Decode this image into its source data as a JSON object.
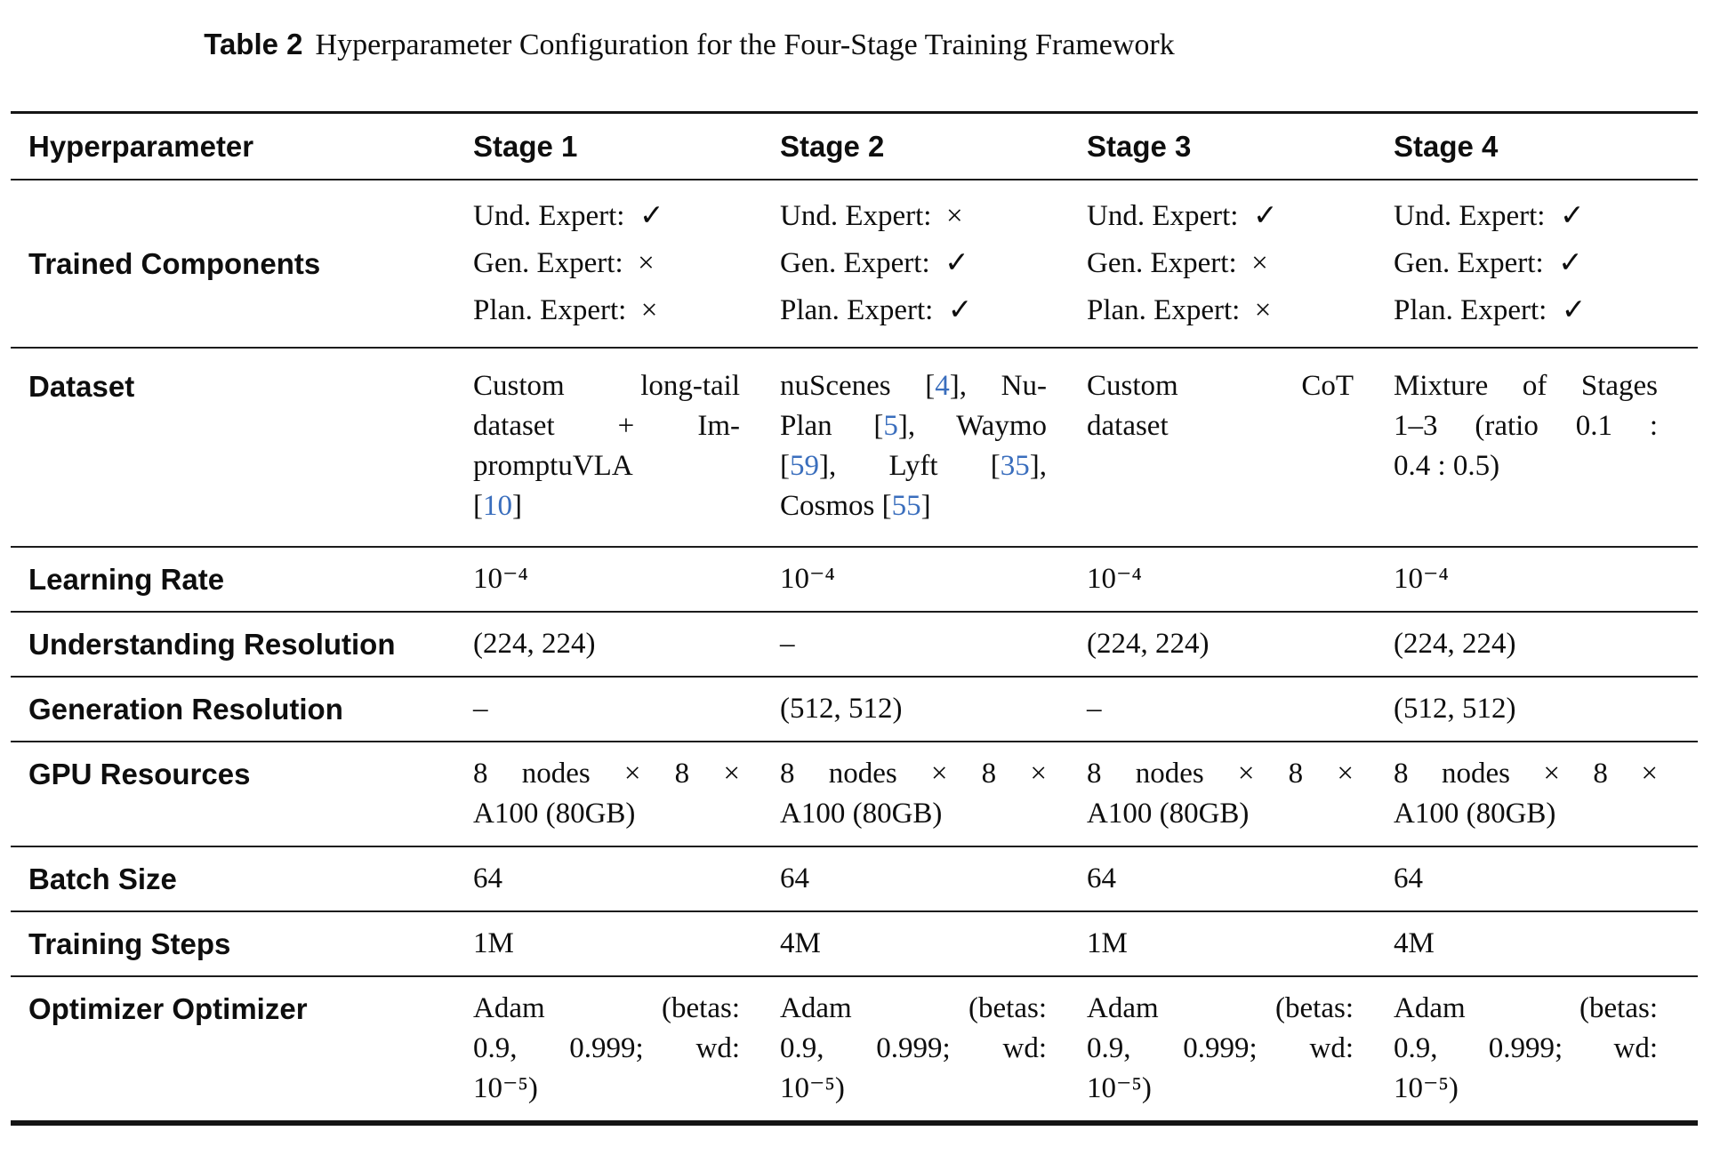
{
  "title": {
    "label": "Table 2",
    "caption": "Hyperparameter Configuration for the Four-Stage Training Framework"
  },
  "colors": {
    "citation_blue": "#3a6ebd",
    "rule_black": "#141414",
    "text_black": "#0e0e0e"
  },
  "table": {
    "header": [
      "Hyperparameter",
      "Stage 1",
      "Stage 2",
      "Stage 3",
      "Stage 4"
    ],
    "rows": [
      {
        "label": "Trained Components",
        "spacing": "wide",
        "label_valign": "center",
        "cells": [
          {
            "justify": false,
            "lines": [
              "Und. Expert: ✓",
              "Gen. Expert: ×",
              "Plan. Expert: ×"
            ]
          },
          {
            "justify": false,
            "lines": [
              "Und. Expert: ×",
              "Gen. Expert: ✓",
              "Plan. Expert: ✓"
            ]
          },
          {
            "justify": false,
            "lines": [
              "Und. Expert: ✓",
              "Gen. Expert: ×",
              "Plan. Expert: ×"
            ]
          },
          {
            "justify": false,
            "lines": [
              "Und. Expert: ✓",
              "Gen. Expert: ✓",
              "Plan. Expert: ✓"
            ]
          }
        ]
      },
      {
        "label": "Dataset",
        "pad": "lg",
        "cells": [
          {
            "justify": true,
            "lines": [
              "Custom long-tail",
              "dataset + Im-",
              "promptuVLA",
              "[10]"
            ]
          },
          {
            "justify": true,
            "lines": [
              "nuScenes [4], Nu-",
              "Plan [5], Waymo",
              "[59], Lyft [35],",
              "Cosmos [55]"
            ]
          },
          {
            "justify": true,
            "lines": [
              "Custom CoT",
              "dataset"
            ]
          },
          {
            "justify": true,
            "lines": [
              "Mixture of Stages",
              "1–3 (ratio 0.1 :",
              "0.4 : 0.5)"
            ]
          }
        ]
      },
      {
        "label": "Learning Rate",
        "cells": [
          {
            "justify": false,
            "lines": [
              "10⁻⁴"
            ]
          },
          {
            "justify": false,
            "lines": [
              "10⁻⁴"
            ]
          },
          {
            "justify": false,
            "lines": [
              "10⁻⁴"
            ]
          },
          {
            "justify": false,
            "lines": [
              "10⁻⁴"
            ]
          }
        ]
      },
      {
        "label": "Understanding Resolution",
        "cells": [
          {
            "justify": false,
            "lines": [
              "(224, 224)"
            ]
          },
          {
            "justify": false,
            "lines": [
              "–"
            ]
          },
          {
            "justify": false,
            "lines": [
              "(224, 224)"
            ]
          },
          {
            "justify": false,
            "lines": [
              "(224, 224)"
            ]
          }
        ]
      },
      {
        "label": "Generation Resolution",
        "cells": [
          {
            "justify": false,
            "lines": [
              "–"
            ]
          },
          {
            "justify": false,
            "lines": [
              "(512, 512)"
            ]
          },
          {
            "justify": false,
            "lines": [
              "–"
            ]
          },
          {
            "justify": false,
            "lines": [
              "(512, 512)"
            ]
          }
        ]
      },
      {
        "label": "GPU Resources",
        "cells": [
          {
            "justify": true,
            "lines": [
              "8 nodes × 8 ×",
              "A100 (80GB)"
            ]
          },
          {
            "justify": true,
            "lines": [
              "8 nodes × 8 ×",
              "A100 (80GB)"
            ]
          },
          {
            "justify": true,
            "lines": [
              "8 nodes × 8 ×",
              "A100 (80GB)"
            ]
          },
          {
            "justify": true,
            "lines": [
              "8 nodes × 8 ×",
              "A100 (80GB)"
            ]
          }
        ]
      },
      {
        "label": "Batch Size",
        "cells": [
          {
            "justify": false,
            "lines": [
              "64"
            ]
          },
          {
            "justify": false,
            "lines": [
              "64"
            ]
          },
          {
            "justify": false,
            "lines": [
              "64"
            ]
          },
          {
            "justify": false,
            "lines": [
              "64"
            ]
          }
        ]
      },
      {
        "label": "Training Steps",
        "cells": [
          {
            "justify": false,
            "lines": [
              "1M"
            ]
          },
          {
            "justify": false,
            "lines": [
              "4M"
            ]
          },
          {
            "justify": false,
            "lines": [
              "1M"
            ]
          },
          {
            "justify": false,
            "lines": [
              "4M"
            ]
          }
        ]
      },
      {
        "label": "Optimizer Optimizer",
        "cells": [
          {
            "justify": true,
            "lines": [
              "Adam (betas:",
              "0.9, 0.999; wd:",
              "10⁻⁵)"
            ]
          },
          {
            "justify": true,
            "lines": [
              "Adam (betas:",
              "0.9, 0.999; wd:",
              "10⁻⁵)"
            ]
          },
          {
            "justify": true,
            "lines": [
              "Adam (betas:",
              "0.9, 0.999; wd:",
              "10⁻⁵)"
            ]
          },
          {
            "justify": true,
            "lines": [
              "Adam (betas:",
              "0.9, 0.999; wd:",
              "10⁻⁵)"
            ]
          }
        ]
      }
    ]
  }
}
